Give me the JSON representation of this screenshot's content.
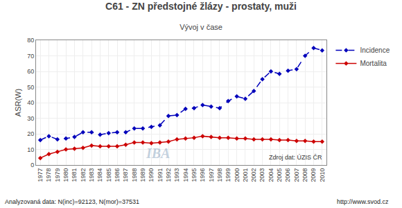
{
  "chart_data": {
    "type": "line",
    "title": "C61 - ZN předstojné žlázy - prostaty, muži",
    "subtitle": "Vývoj v čase",
    "y_label": "ASR(W)",
    "annotations": [
      "IBA",
      "Zdroj dat: ÚZIS ČR",
      "Analyzovaná data: N(inc)=92123, N(mor)=37531",
      "http://www.svod.cz"
    ],
    "x": [
      1977,
      1978,
      1979,
      1980,
      1981,
      1982,
      1983,
      1984,
      1985,
      1986,
      1987,
      1988,
      1989,
      1990,
      1991,
      1992,
      1993,
      1994,
      1995,
      1996,
      1997,
      1998,
      1999,
      2000,
      2001,
      2002,
      2003,
      2004,
      2005,
      2006,
      2007,
      2008,
      2009,
      2010
    ],
    "series": [
      {
        "name": "Incidence",
        "color": "#0000bb",
        "marker": "diamond",
        "line_style": "dashed",
        "values": [
          16.0,
          18.5,
          16.5,
          17.0,
          18.0,
          21.0,
          21.0,
          19.5,
          20.5,
          21.0,
          21.0,
          23.5,
          23.5,
          24.5,
          25.5,
          31.5,
          32.0,
          36.0,
          36.5,
          38.5,
          37.5,
          36.5,
          41.0,
          44.0,
          42.5,
          47.5,
          55.0,
          60.0,
          58.5,
          60.5,
          61.5,
          70.0,
          75.0,
          73.5
        ]
      },
      {
        "name": "Mortalita",
        "color": "#cc0000",
        "marker": "diamond",
        "line_style": "solid",
        "values": [
          4.5,
          7.0,
          8.5,
          10.0,
          10.5,
          11.0,
          12.5,
          12.0,
          12.0,
          12.0,
          13.0,
          14.5,
          14.5,
          14.0,
          14.5,
          15.0,
          16.5,
          17.0,
          17.5,
          18.5,
          18.0,
          17.5,
          17.5,
          17.0,
          17.0,
          16.5,
          16.5,
          16.5,
          16.0,
          16.0,
          15.5,
          15.5,
          15.0,
          15.0
        ]
      }
    ],
    "xlim": [
      1976.5,
      2010.5
    ],
    "xticks": [
      1977,
      1978,
      1979,
      1980,
      1981,
      1982,
      1983,
      1984,
      1985,
      1986,
      1987,
      1988,
      1989,
      1990,
      1991,
      1992,
      1993,
      1994,
      1995,
      1996,
      1997,
      1998,
      1999,
      2000,
      2001,
      2002,
      2003,
      2004,
      2005,
      2006,
      2007,
      2008,
      2009,
      2010
    ],
    "ylim": [
      0,
      80
    ],
    "yticks": [
      0,
      10,
      20,
      30,
      40,
      50,
      60,
      70,
      80
    ],
    "grid": true,
    "legend": "right"
  }
}
